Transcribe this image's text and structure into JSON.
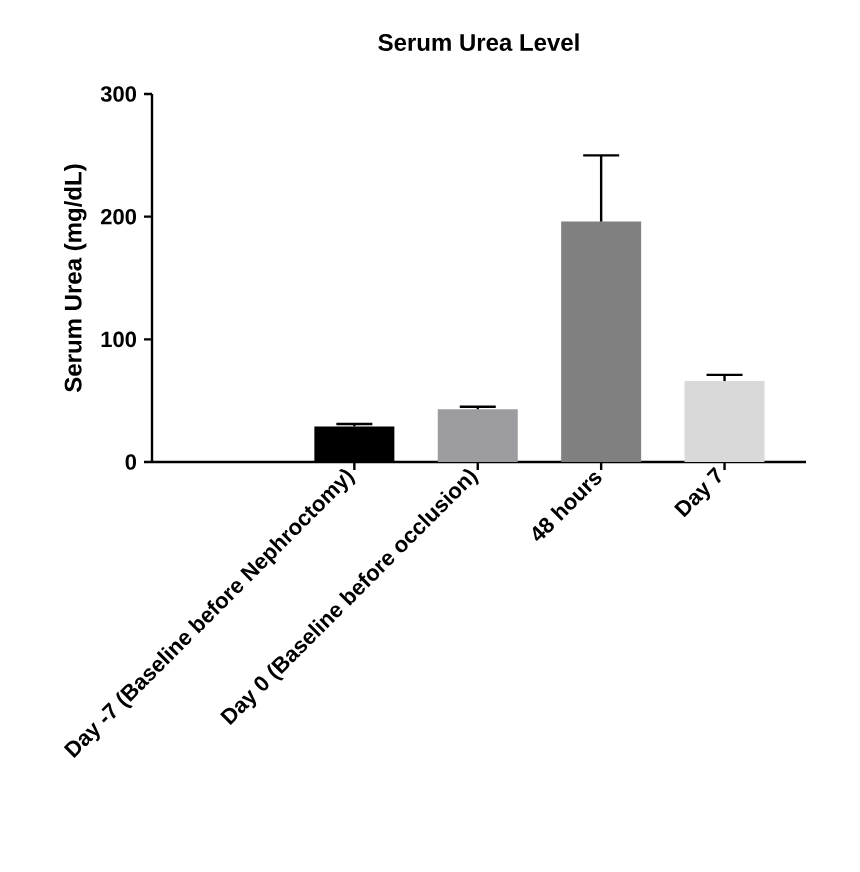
{
  "chart_data": {
    "type": "bar",
    "title": "Serum Urea Level",
    "ylabel": "Serum Urea (mg/dL)",
    "categories": [
      "Day -7 (Baseline before Nephroctomy)",
      "Day 0 (Baseline before occlusion)",
      "48 hours",
      "Day 7"
    ],
    "values": [
      29,
      43,
      196,
      66
    ],
    "errors": [
      [
        29,
        31
      ],
      [
        43,
        45
      ],
      [
        196,
        250
      ],
      [
        66,
        71
      ]
    ],
    "colors": [
      "#000000",
      "#9d9da1",
      "#808080",
      "#d9d9d9"
    ],
    "ylim": [
      0,
      300
    ],
    "yticks": [
      0,
      100,
      200,
      300
    ]
  }
}
